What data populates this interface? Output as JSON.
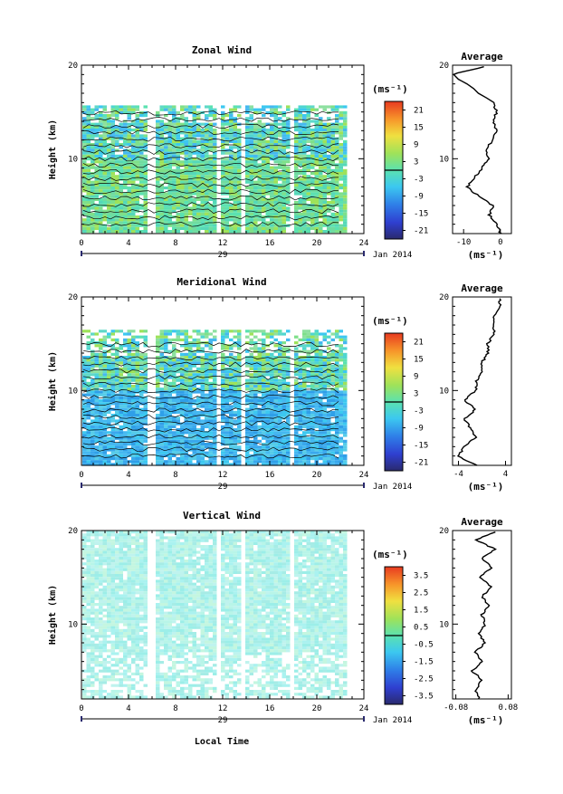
{
  "figure": {
    "date_label": "Jan 2014",
    "day_label": "29",
    "xlabel": "Local Time",
    "ylabel": "Height (km)",
    "units": "(ms⁻¹)",
    "average_title": "Average"
  },
  "chart_data": [
    {
      "type": "heatmap",
      "title": "Zonal Wind",
      "ylabel": "Height (km)",
      "xlim": [
        0,
        24
      ],
      "ylim": [
        2,
        20
      ],
      "xticks": [
        0,
        4,
        8,
        12,
        16,
        20,
        24
      ],
      "yticks": [
        10,
        20
      ],
      "colorbar": {
        "ticks": [
          21,
          15,
          9,
          3,
          -3,
          -9,
          -15,
          -21
        ],
        "range": [
          -24,
          24
        ]
      },
      "data_gaps_hours": [
        [
          5.6,
          6.0
        ],
        [
          11.3,
          11.7
        ],
        [
          13.4,
          13.9
        ],
        [
          17.5,
          17.8
        ]
      ],
      "data_top_km": 15.7,
      "average": {
        "xlim": [
          -13,
          3
        ],
        "xticks": [
          -10,
          0
        ],
        "units": "(ms⁻¹)",
        "profile": [
          [
            2,
            0
          ],
          [
            3,
            -1
          ],
          [
            4,
            -3
          ],
          [
            5,
            -2
          ],
          [
            6,
            -6
          ],
          [
            7,
            -9
          ],
          [
            8,
            -7
          ],
          [
            9,
            -5
          ],
          [
            10,
            -3
          ],
          [
            11,
            -4
          ],
          [
            12,
            -2
          ],
          [
            13,
            -1
          ],
          [
            14,
            -2
          ],
          [
            15,
            -1
          ],
          [
            16,
            -2
          ],
          [
            19,
            -13
          ],
          [
            20,
            -3
          ]
        ]
      }
    },
    {
      "type": "heatmap",
      "title": "Meridional Wind",
      "ylabel": "Height (km)",
      "xlim": [
        0,
        24
      ],
      "ylim": [
        2,
        20
      ],
      "xticks": [
        0,
        4,
        8,
        12,
        16,
        20,
        24
      ],
      "yticks": [
        10,
        20
      ],
      "colorbar": {
        "ticks": [
          21,
          15,
          9,
          3,
          -3,
          -9,
          -15,
          -21
        ],
        "range": [
          -24,
          24
        ]
      },
      "data_gaps_hours": [
        [
          5.6,
          6.0
        ],
        [
          11.3,
          11.7
        ],
        [
          13.4,
          13.9
        ],
        [
          17.5,
          17.8
        ]
      ],
      "data_top_km": 16.5,
      "average": {
        "xlim": [
          -5,
          5
        ],
        "xticks": [
          -4,
          4
        ],
        "units": "(ms⁻¹)",
        "profile": [
          [
            2,
            -1
          ],
          [
            3,
            -4
          ],
          [
            4,
            -3
          ],
          [
            5,
            -1
          ],
          [
            6,
            -2
          ],
          [
            7,
            -3
          ],
          [
            8,
            -1
          ],
          [
            9,
            -3
          ],
          [
            10,
            -1
          ],
          [
            11,
            -1
          ],
          [
            12,
            0
          ],
          [
            13,
            0
          ],
          [
            14,
            1
          ],
          [
            15,
            1
          ],
          [
            16,
            2
          ],
          [
            17,
            2
          ],
          [
            18,
            2
          ],
          [
            19,
            3
          ],
          [
            20,
            3
          ]
        ]
      }
    },
    {
      "type": "heatmap",
      "title": "Vertical Wind",
      "ylabel": "Height (km)",
      "xlabel": "Local Time",
      "xlim": [
        0,
        24
      ],
      "ylim": [
        2,
        20
      ],
      "xticks": [
        0,
        4,
        8,
        12,
        16,
        20,
        24
      ],
      "yticks": [
        10,
        20
      ],
      "colorbar": {
        "ticks": [
          3.5,
          2.5,
          1.5,
          0.5,
          -0.5,
          -1.5,
          -2.5,
          -3.5
        ],
        "range": [
          -4,
          4
        ]
      },
      "data_gaps_hours": [
        [
          5.6,
          6.0
        ],
        [
          11.3,
          11.7
        ],
        [
          13.4,
          13.9
        ],
        [
          17.5,
          17.8
        ]
      ],
      "data_top_km": 20,
      "average": {
        "xlim": [
          -0.09,
          0.09
        ],
        "xticks": [
          -0.08,
          0.08
        ],
        "units": "(ms⁻¹)",
        "profile": [
          [
            2,
            -0.01
          ],
          [
            3,
            -0.02
          ],
          [
            4,
            0.0
          ],
          [
            5,
            -0.03
          ],
          [
            6,
            0.0
          ],
          [
            7,
            -0.02
          ],
          [
            8,
            0.01
          ],
          [
            9,
            -0.01
          ],
          [
            10,
            0.01
          ],
          [
            11,
            0.0
          ],
          [
            12,
            0.02
          ],
          [
            13,
            0.0
          ],
          [
            14,
            0.03
          ],
          [
            15,
            -0.01
          ],
          [
            16,
            0.03
          ],
          [
            17,
            0.0
          ],
          [
            18,
            0.04
          ],
          [
            19,
            -0.02
          ],
          [
            20,
            0.05
          ]
        ]
      }
    }
  ]
}
